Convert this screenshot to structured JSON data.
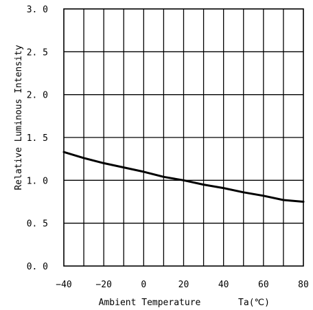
{
  "chart_data": {
    "type": "line",
    "title": "",
    "xlabel": "Ambient Temperature",
    "xunit": "Ta(℃)",
    "ylabel": "Relative Luminous Intensity",
    "x_ticks": [
      -40,
      -20,
      0,
      20,
      40,
      60,
      80
    ],
    "x_tick_labels": [
      "−40",
      "−20",
      "0",
      "20",
      "40",
      "60",
      "80"
    ],
    "y_ticks": [
      0.0,
      0.5,
      1.0,
      1.5,
      2.0,
      2.5,
      3.0
    ],
    "y_tick_labels": [
      "0. 0",
      "0. 5",
      "1. 0",
      "1. 5",
      "2. 0",
      "2. 5",
      "3. 0"
    ],
    "xlim": [
      -40,
      80
    ],
    "ylim": [
      0,
      3.0
    ],
    "x_grid_step": 10,
    "y_grid_step": 0.5,
    "grid": true,
    "legend": "none",
    "series": [
      {
        "x": [
          -40,
          -30,
          -20,
          -10,
          0,
          10,
          20,
          30,
          40,
          50,
          60,
          70,
          80
        ],
        "y": [
          1.33,
          1.26,
          1.2,
          1.15,
          1.1,
          1.04,
          1.0,
          0.95,
          0.91,
          0.86,
          0.82,
          0.77,
          0.75
        ]
      }
    ]
  }
}
